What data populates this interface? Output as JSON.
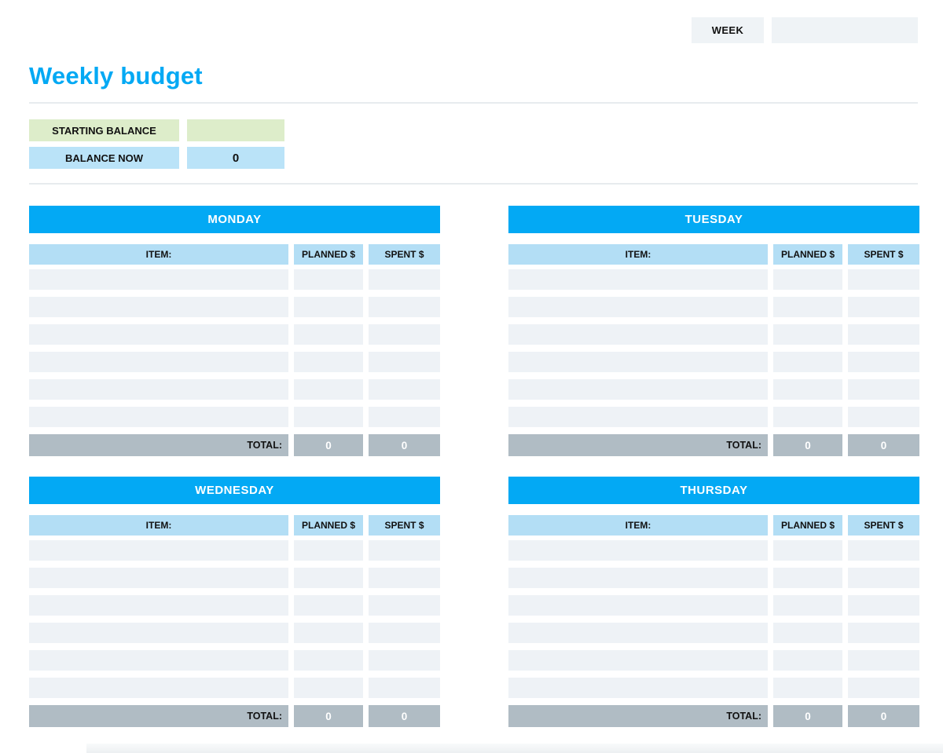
{
  "header": {
    "week_label": "WEEK",
    "week_value": ""
  },
  "title": "Weekly budget",
  "balance": {
    "starting_label": "STARTING BALANCE",
    "starting_value": "",
    "now_label": "BALANCE NOW",
    "now_value": "0"
  },
  "table_defaults": {
    "item_header": "ITEM:",
    "planned_header": "PLANNED $",
    "spent_header": "SPENT $",
    "total_label": "TOTAL:",
    "row_count": 6
  },
  "tables": [
    {
      "day": "MONDAY",
      "total_planned": "0",
      "total_spent": "0"
    },
    {
      "day": "TUESDAY",
      "total_planned": "0",
      "total_spent": "0"
    },
    {
      "day": "WEDNESDAY",
      "total_planned": "0",
      "total_spent": "0"
    },
    {
      "day": "THURSDAY",
      "total_planned": "0",
      "total_spent": "0"
    }
  ],
  "colors": {
    "accent_blue": "#03a9f4",
    "column_header_blue": "#b3def5",
    "balance_blue": "#bae3f8",
    "starting_green": "#ddedca",
    "empty_cell_gray": "#eef2f6",
    "total_gray": "#b0bcc4",
    "week_box_gray": "#eff3f6"
  }
}
